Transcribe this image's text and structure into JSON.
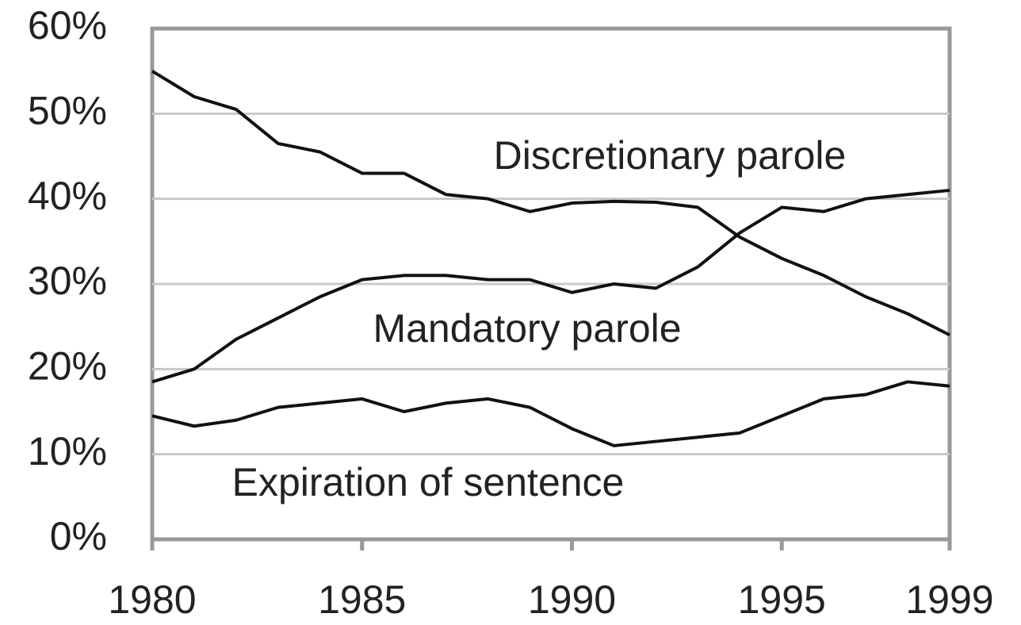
{
  "chart_data": {
    "type": "line",
    "x": [
      1980,
      1981,
      1982,
      1983,
      1984,
      1985,
      1986,
      1987,
      1988,
      1989,
      1990,
      1991,
      1992,
      1993,
      1994,
      1995,
      1996,
      1997,
      1998,
      1999
    ],
    "series": [
      {
        "name": "Discretionary parole",
        "color": "#111111",
        "values": [
          55,
          52,
          50.5,
          46.5,
          45.5,
          43,
          43,
          40.5,
          40,
          38.5,
          39.5,
          39.7,
          39.6,
          39,
          35.5,
          33,
          31,
          28.5,
          26.5,
          24
        ]
      },
      {
        "name": "Mandatory parole",
        "color": "#111111",
        "values": [
          18.5,
          20,
          23.5,
          26,
          28.5,
          30.5,
          31,
          31,
          30.5,
          30.5,
          29,
          30,
          29.5,
          32,
          36,
          39,
          38.5,
          40,
          40.5,
          41
        ]
      },
      {
        "name": "Expiration of sentence",
        "color": "#111111",
        "values": [
          14.5,
          13.3,
          14,
          15.5,
          16,
          16.5,
          15,
          16,
          16.5,
          15.5,
          13,
          11,
          11.5,
          12,
          12.5,
          14.5,
          16.5,
          17,
          18.5,
          18
        ]
      }
    ],
    "xlim": [
      1980,
      1999
    ],
    "xticks": [
      1980,
      1985,
      1990,
      1995,
      1999
    ],
    "ylim": [
      0,
      60
    ],
    "yticks": [
      {
        "value": 0,
        "label": "0%"
      },
      {
        "value": 10,
        "label": "10%"
      },
      {
        "value": 20,
        "label": "20%"
      },
      {
        "value": 30,
        "label": "30%"
      },
      {
        "value": 40,
        "label": "40%"
      },
      {
        "value": 50,
        "label": "50%"
      },
      {
        "value": 60,
        "label": "60%"
      }
    ],
    "grid": true
  }
}
